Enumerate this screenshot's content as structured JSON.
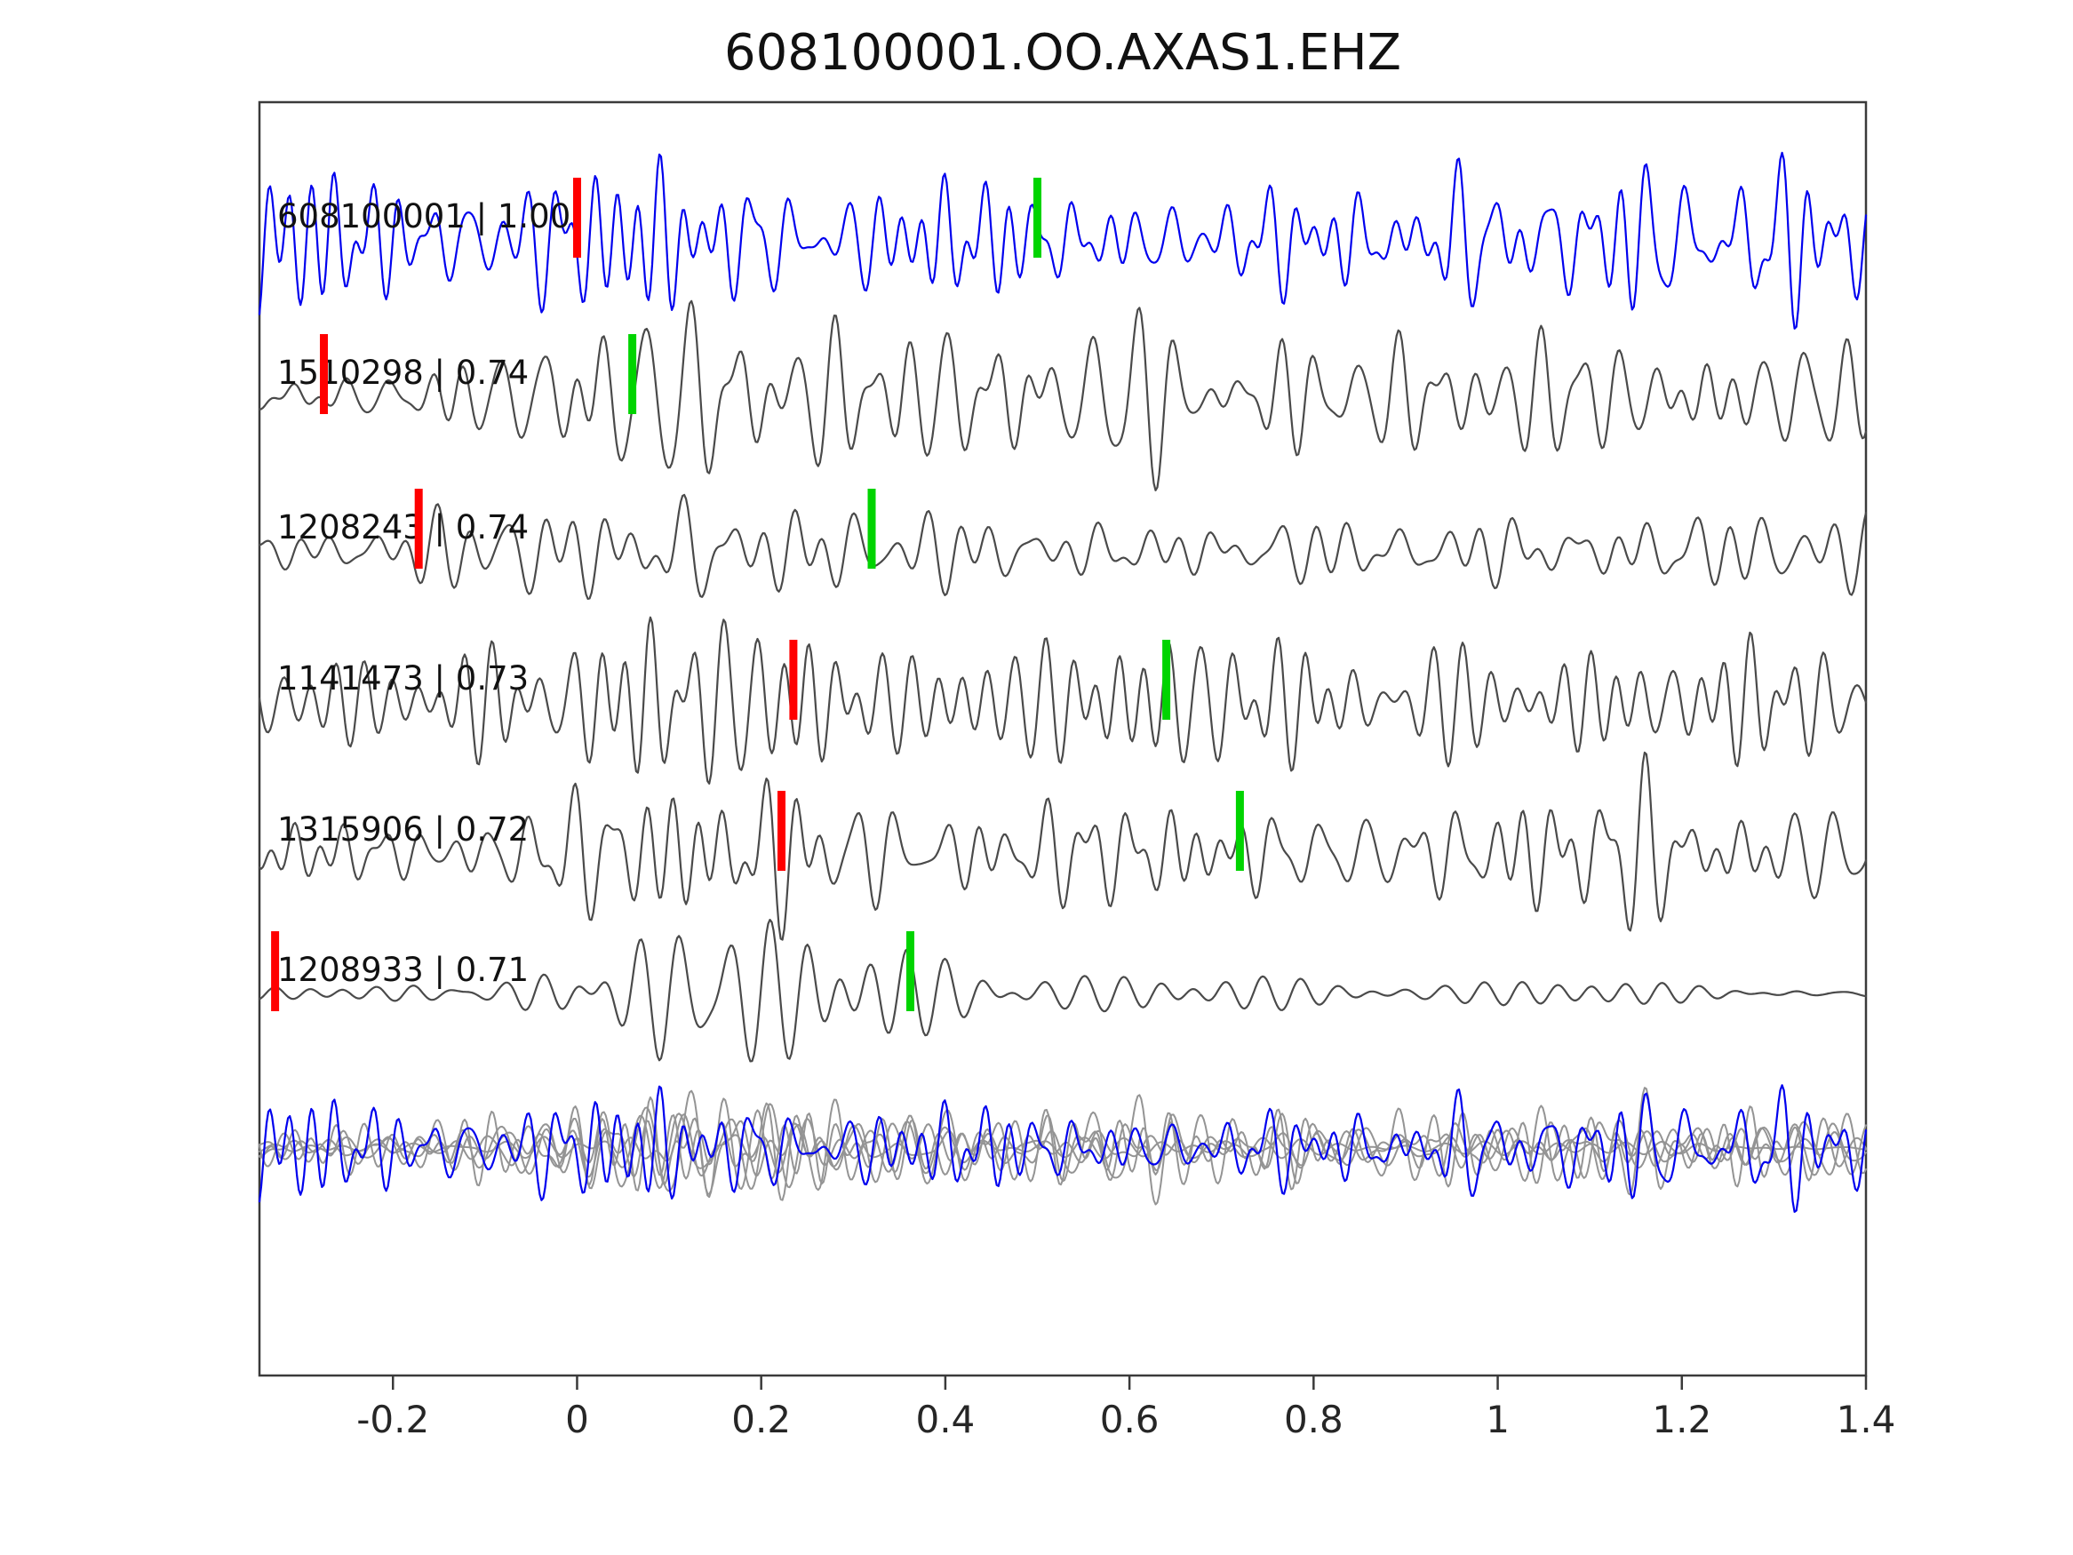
{
  "title": "608100001.OO.AXAS1.EHZ",
  "chart_data": {
    "type": "line",
    "title": "608100001.OO.AXAS1.EHZ",
    "xlabel": "",
    "ylabel": "",
    "xlim": [
      -0.345,
      1.4
    ],
    "xticks": [
      -0.2,
      0,
      0.2,
      0.4,
      0.6,
      0.8,
      1,
      1.2,
      1.4
    ],
    "xtick_labels": [
      "-0.2",
      "0",
      "0.2",
      "0.4",
      "0.6",
      "0.8",
      "1",
      "1.2",
      "1.4"
    ],
    "grid": false,
    "legend": false,
    "colors": {
      "template_trace": "#0000ee",
      "match_trace": "#4a4a4a",
      "overlay_gray": "#949494",
      "pick_red": "#ff0000",
      "pick_green": "#00d400",
      "axis": "#3a3a3a"
    },
    "traces": [
      {
        "id": "608100001",
        "correlation": "1.00",
        "label": "608100001 | 1.00",
        "role": "template",
        "picks": {
          "red_x": 0.0,
          "green_x": 0.5
        },
        "seed": 101,
        "components": 10,
        "freq_band": [
          18,
          46
        ],
        "envelope": [
          [
            -0.35,
            58
          ],
          [
            0.0,
            62
          ],
          [
            0.2,
            58
          ],
          [
            0.45,
            50
          ],
          [
            0.6,
            42
          ],
          [
            0.75,
            48
          ],
          [
            0.9,
            58
          ],
          [
            1.05,
            72
          ],
          [
            1.2,
            80
          ],
          [
            1.4,
            72
          ]
        ]
      },
      {
        "id": "1510298",
        "correlation": "0.74",
        "label": "1510298 | 0.74",
        "role": "match",
        "picks": {
          "red_x": -0.275,
          "green_x": 0.06
        },
        "seed": 202,
        "components": 9,
        "freq_band": [
          16,
          40
        ],
        "envelope": [
          [
            -0.35,
            16
          ],
          [
            -0.22,
            22
          ],
          [
            -0.08,
            40
          ],
          [
            0.05,
            62
          ],
          [
            0.2,
            72
          ],
          [
            0.4,
            66
          ],
          [
            0.6,
            62
          ],
          [
            0.8,
            64
          ],
          [
            1.0,
            60
          ],
          [
            1.2,
            58
          ],
          [
            1.4,
            42
          ]
        ]
      },
      {
        "id": "1208243",
        "correlation": "0.74",
        "label": "1208243 | 0.74",
        "role": "match",
        "picks": {
          "red_x": -0.172,
          "green_x": 0.32
        },
        "seed": 303,
        "components": 9,
        "freq_band": [
          15,
          38
        ],
        "envelope": [
          [
            -0.35,
            26
          ],
          [
            -0.18,
            36
          ],
          [
            -0.02,
            60
          ],
          [
            0.12,
            74
          ],
          [
            0.28,
            52
          ],
          [
            0.45,
            42
          ],
          [
            0.6,
            36
          ],
          [
            0.8,
            38
          ],
          [
            1.0,
            42
          ],
          [
            1.15,
            48
          ],
          [
            1.3,
            40
          ],
          [
            1.4,
            34
          ]
        ]
      },
      {
        "id": "1141473",
        "correlation": "0.73",
        "label": "1141473 | 0.73",
        "role": "match",
        "picks": {
          "red_x": 0.235,
          "green_x": 0.64
        },
        "seed": 404,
        "components": 9,
        "freq_band": [
          16,
          42
        ],
        "envelope": [
          [
            -0.35,
            48
          ],
          [
            -0.15,
            58
          ],
          [
            0.05,
            70
          ],
          [
            0.25,
            68
          ],
          [
            0.45,
            60
          ],
          [
            0.65,
            55
          ],
          [
            0.85,
            50
          ],
          [
            1.05,
            52
          ],
          [
            1.25,
            54
          ],
          [
            1.4,
            40
          ]
        ]
      },
      {
        "id": "1315906",
        "correlation": "0.72",
        "label": "1315906 | 0.72",
        "role": "match",
        "picks": {
          "red_x": 0.222,
          "green_x": 0.72
        },
        "seed": 505,
        "components": 9,
        "freq_band": [
          15,
          40
        ],
        "envelope": [
          [
            -0.35,
            38
          ],
          [
            -0.15,
            42
          ],
          [
            0.02,
            58
          ],
          [
            0.18,
            74
          ],
          [
            0.35,
            60
          ],
          [
            0.55,
            42
          ],
          [
            0.75,
            46
          ],
          [
            0.95,
            50
          ],
          [
            1.15,
            56
          ],
          [
            1.3,
            50
          ],
          [
            1.4,
            36
          ]
        ]
      },
      {
        "id": "1208933",
        "correlation": "0.71",
        "label": "1208933 | 0.71",
        "role": "match",
        "picks": {
          "red_x": -0.328,
          "green_x": 0.362
        },
        "seed": 606,
        "components": 6,
        "freq_band": [
          20,
          30
        ],
        "envelope": [
          [
            -0.35,
            4
          ],
          [
            -0.2,
            7
          ],
          [
            -0.08,
            14
          ],
          [
            0.02,
            40
          ],
          [
            0.09,
            95
          ],
          [
            0.14,
            112
          ],
          [
            0.22,
            78
          ],
          [
            0.32,
            48
          ],
          [
            0.45,
            28
          ],
          [
            0.6,
            18
          ],
          [
            0.8,
            12
          ],
          [
            1.0,
            8
          ],
          [
            1.2,
            6
          ],
          [
            1.4,
            5
          ]
        ]
      }
    ],
    "overlay": {
      "description": "all matched waveforms overlapped in gray with template trace in blue",
      "gray_scale": 0.6,
      "blue_scale": 0.72
    }
  }
}
